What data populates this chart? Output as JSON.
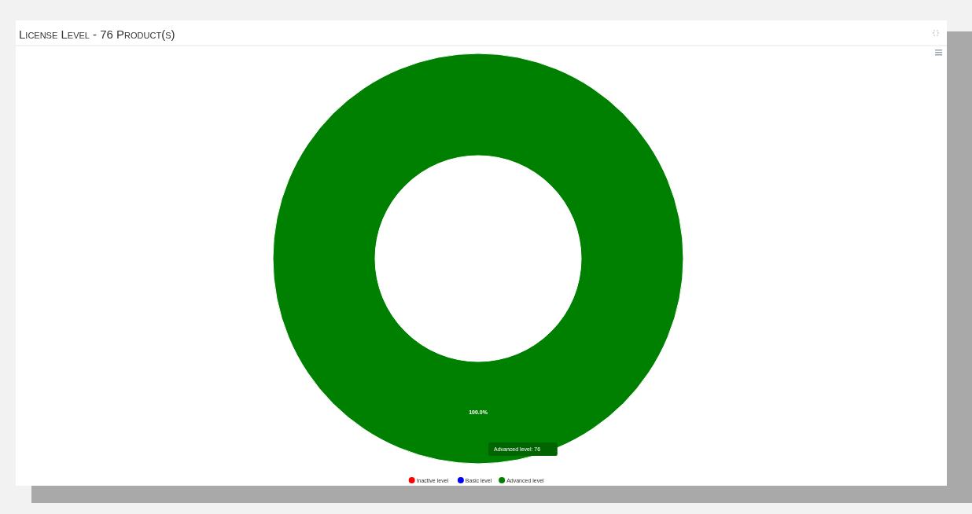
{
  "chart_data": {
    "type": "donut",
    "title": "License Level - 76 Product(s)",
    "categories": [
      "Inactive level",
      "Basic level",
      "Advanced level"
    ],
    "values": [
      0,
      0,
      100
    ],
    "colors": [
      "#ff0000",
      "#0000ff",
      "#008000"
    ],
    "value_labels": [
      null,
      null,
      "100.0%"
    ],
    "annotations": [
      "Advanced level: 76"
    ],
    "legend": "bottom"
  }
}
